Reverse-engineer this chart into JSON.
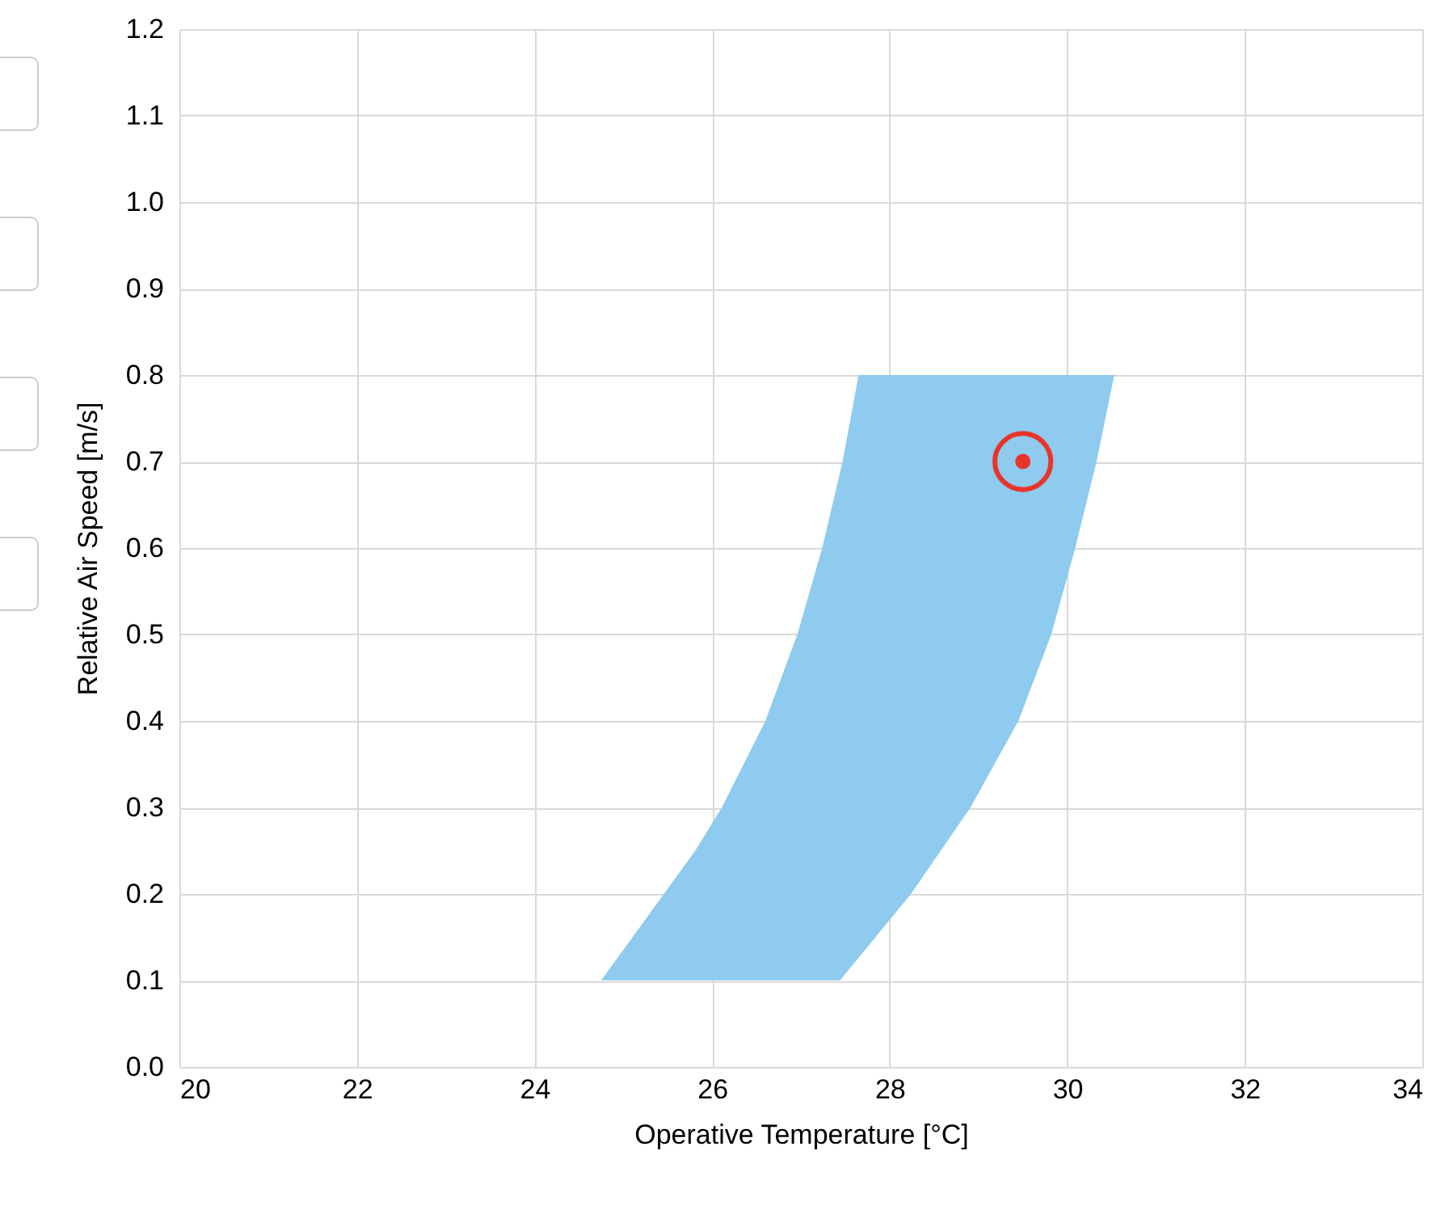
{
  "chart_data": {
    "type": "area",
    "xlabel": "Operative Temperature [°C]",
    "ylabel": "Relative Air Speed [m/s]",
    "xlim": [
      20,
      34
    ],
    "xticks": [
      20,
      22,
      24,
      26,
      28,
      30,
      32,
      34
    ],
    "ylim": [
      0,
      1.2
    ],
    "yticks": [
      {
        "value": 0,
        "label": "0.0"
      },
      0.1,
      0.2,
      0.3,
      0.4,
      0.5,
      0.6,
      0.7,
      0.8,
      0.9,
      {
        "value": 1,
        "label": "1.0"
      },
      1.1,
      1.2
    ],
    "grid": true,
    "series": [
      {
        "color": "#8ecbee",
        "x": [
          24.75,
          25.81,
          26.11,
          26.6,
          26.96,
          27.24,
          27.47,
          27.65,
          30.53,
          30.33,
          30.09,
          29.82,
          29.45,
          28.91,
          28.24,
          27.44
        ],
        "values": [
          0.1,
          0.25,
          0.3,
          0.4,
          0.5,
          0.6,
          0.7,
          0.8,
          0.8,
          0.7,
          0.6,
          0.5,
          0.4,
          0.3,
          0.2,
          0.1
        ]
      },
      {
        "type": "scatter",
        "color": "#e8352c",
        "marker": "circle",
        "x": [
          29.5
        ],
        "values": [
          0.7
        ]
      }
    ]
  }
}
